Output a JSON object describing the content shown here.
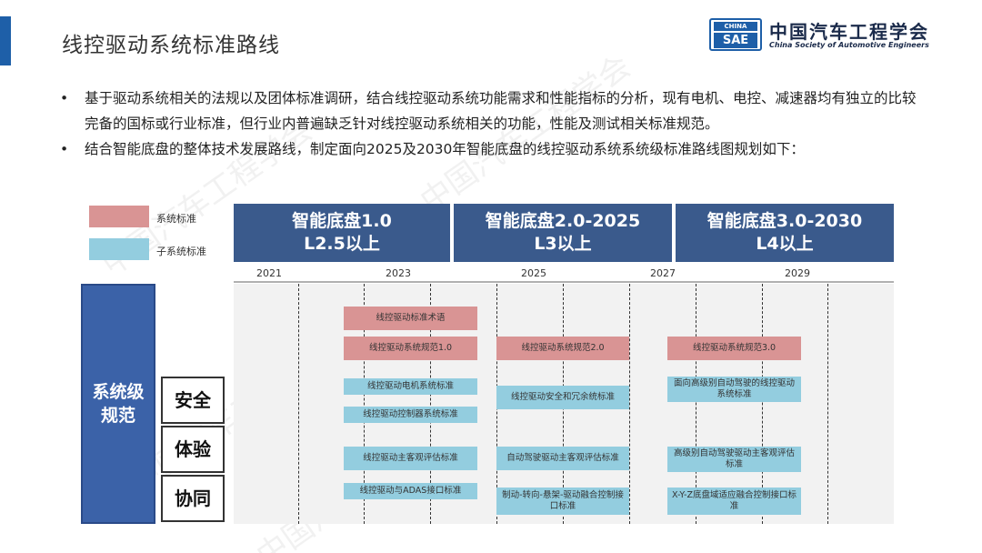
{
  "page": {
    "title": "线控驱动系统标准路线"
  },
  "logo": {
    "badge_top": "CHINA",
    "badge_bottom": "SAE",
    "name_cn": "中国汽车工程学会",
    "name_en": "China Society of Automotive Engineers"
  },
  "bullets": [
    {
      "marker": "•",
      "text": "基于驱动系统相关的法规以及团体标准调研，结合线控驱动系统功能需求和性能指标的分析，现有电机、电控、减速器均有独立的比较完备的国标或行业标准，但行业内普遍缺乏针对线控驱动系统相关的功能，性能及测试相关标准规范。"
    },
    {
      "marker": "•",
      "text": "结合智能底盘的整体技术发展路线，制定面向2025及2030年智能底盘的线控驱动系统系统级标准路线图规划如下："
    }
  ],
  "legend": {
    "system_label": "系统标准",
    "subsystem_label": "子系统标准",
    "system_color": "#d99494",
    "subsystem_color": "#93cddf"
  },
  "phases": [
    {
      "line1": "智能底盘1.0",
      "line2": "L2.5以上"
    },
    {
      "line1": "智能底盘2.0-2025",
      "line2": "L3以上"
    },
    {
      "line1": "智能底盘3.0-2030",
      "line2": "L4以上"
    }
  ],
  "years": [
    "2021",
    "2023",
    "2025",
    "2027",
    "2029"
  ],
  "rows": {
    "main_label_1": "系统级",
    "main_label_2": "规范",
    "categories": [
      "安全",
      "体验",
      "协同"
    ]
  },
  "items": {
    "term": "线控驱动标准术语",
    "spec_1": "线控驱动系统规范1.0",
    "spec_2": "线控驱动系统规范2.0",
    "spec_3": "线控驱动系统规范3.0",
    "motor": "线控驱动电机系统标准",
    "controller": "线控驱动控制器系统标准",
    "safety_redundancy": "线控驱动安全和冗余统标准",
    "high_level_ad": "面向高级别自动驾驶的线控驱动系统标准",
    "subjective_eval": "线控驱动主客观评估标准",
    "ad_subjective_eval": "自动驾驶驱动主客观评估标准",
    "high_level_subjective_eval": "高级别自动驾驶驱动主客观评估标准",
    "adas_interface": "线控驱动与ADAS接口标准",
    "fusion_interface": "制动-转向-悬架-驱动融合控制接口标准",
    "xyz_fusion": "X-Y-Z底盘域适应融合控制接口标准"
  },
  "watermark": "中国汽车工程学会"
}
